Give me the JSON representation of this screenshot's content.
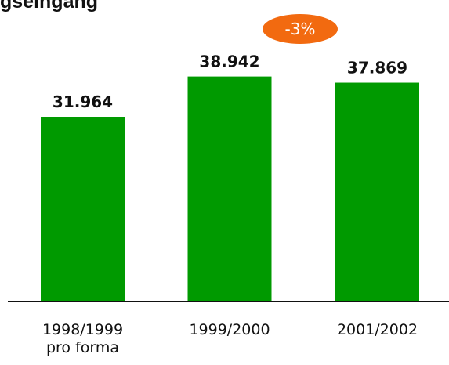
{
  "chart_data": {
    "type": "bar",
    "title": "gseingang",
    "categories": [
      "1998/1999 pro forma",
      "1999/2000",
      "2001/2002"
    ],
    "values": [
      31964,
      38942,
      37869
    ],
    "value_labels": [
      "31.964",
      "38.942",
      "37.869"
    ],
    "color": "#009a00",
    "annotation": "-3%",
    "annotation_color": "#f26a10"
  }
}
